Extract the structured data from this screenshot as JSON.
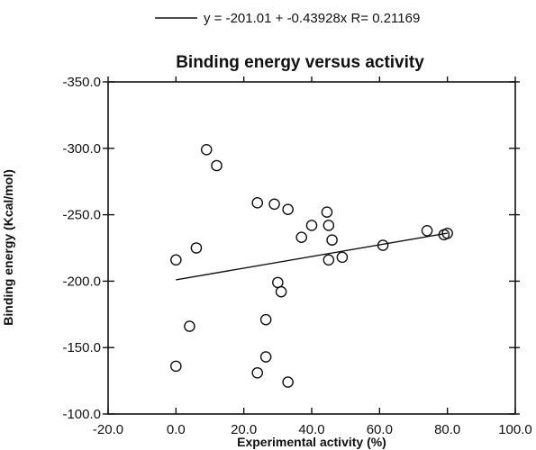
{
  "chart_data": {
    "type": "scatter",
    "title": "Binding energy versus activity",
    "legend": {
      "text": "y = -201.01 + -0.43928x R= 0.21169",
      "placement": "top-center"
    },
    "xlabel": "Experimental activity (%)",
    "ylabel": "Binding energy (Kcal/mol)",
    "xlim": [
      -20,
      100
    ],
    "ylim": [
      -100,
      -350
    ],
    "y_axis_inverted": true,
    "grid": false,
    "x_ticks": [
      -20,
      0,
      20,
      40,
      60,
      80,
      100
    ],
    "y_ticks": [
      -100,
      -150,
      -200,
      -250,
      -300,
      -350
    ],
    "x_tick_labels": [
      "-20.0",
      "0.0",
      "20.0",
      "40.0",
      "60.0",
      "80.0",
      "100.0"
    ],
    "y_tick_labels": [
      "-100.0",
      "-150.0",
      "-200.0",
      "-250.0",
      "-300.0",
      "-350.0"
    ],
    "series": [
      {
        "marker": "open-circle",
        "points": [
          [
            0,
            -216
          ],
          [
            0,
            -136
          ],
          [
            4,
            -166
          ],
          [
            6,
            -225
          ],
          [
            9,
            -299
          ],
          [
            12,
            -287
          ],
          [
            24,
            -259
          ],
          [
            24,
            -131
          ],
          [
            26.5,
            -143
          ],
          [
            26.5,
            -171
          ],
          [
            29,
            -258
          ],
          [
            30,
            -199
          ],
          [
            31,
            -192
          ],
          [
            33,
            -254
          ],
          [
            33,
            -124
          ],
          [
            37,
            -233
          ],
          [
            40,
            -242
          ],
          [
            44.5,
            -252
          ],
          [
            45,
            -242
          ],
          [
            45,
            -216
          ],
          [
            46,
            -231
          ],
          [
            49,
            -218
          ],
          [
            61,
            -227
          ],
          [
            74,
            -238
          ],
          [
            79,
            -235
          ],
          [
            80,
            -236
          ]
        ]
      }
    ],
    "fit_line": {
      "intercept": -201.01,
      "slope": -0.43928,
      "x_range": [
        0,
        80
      ]
    }
  }
}
